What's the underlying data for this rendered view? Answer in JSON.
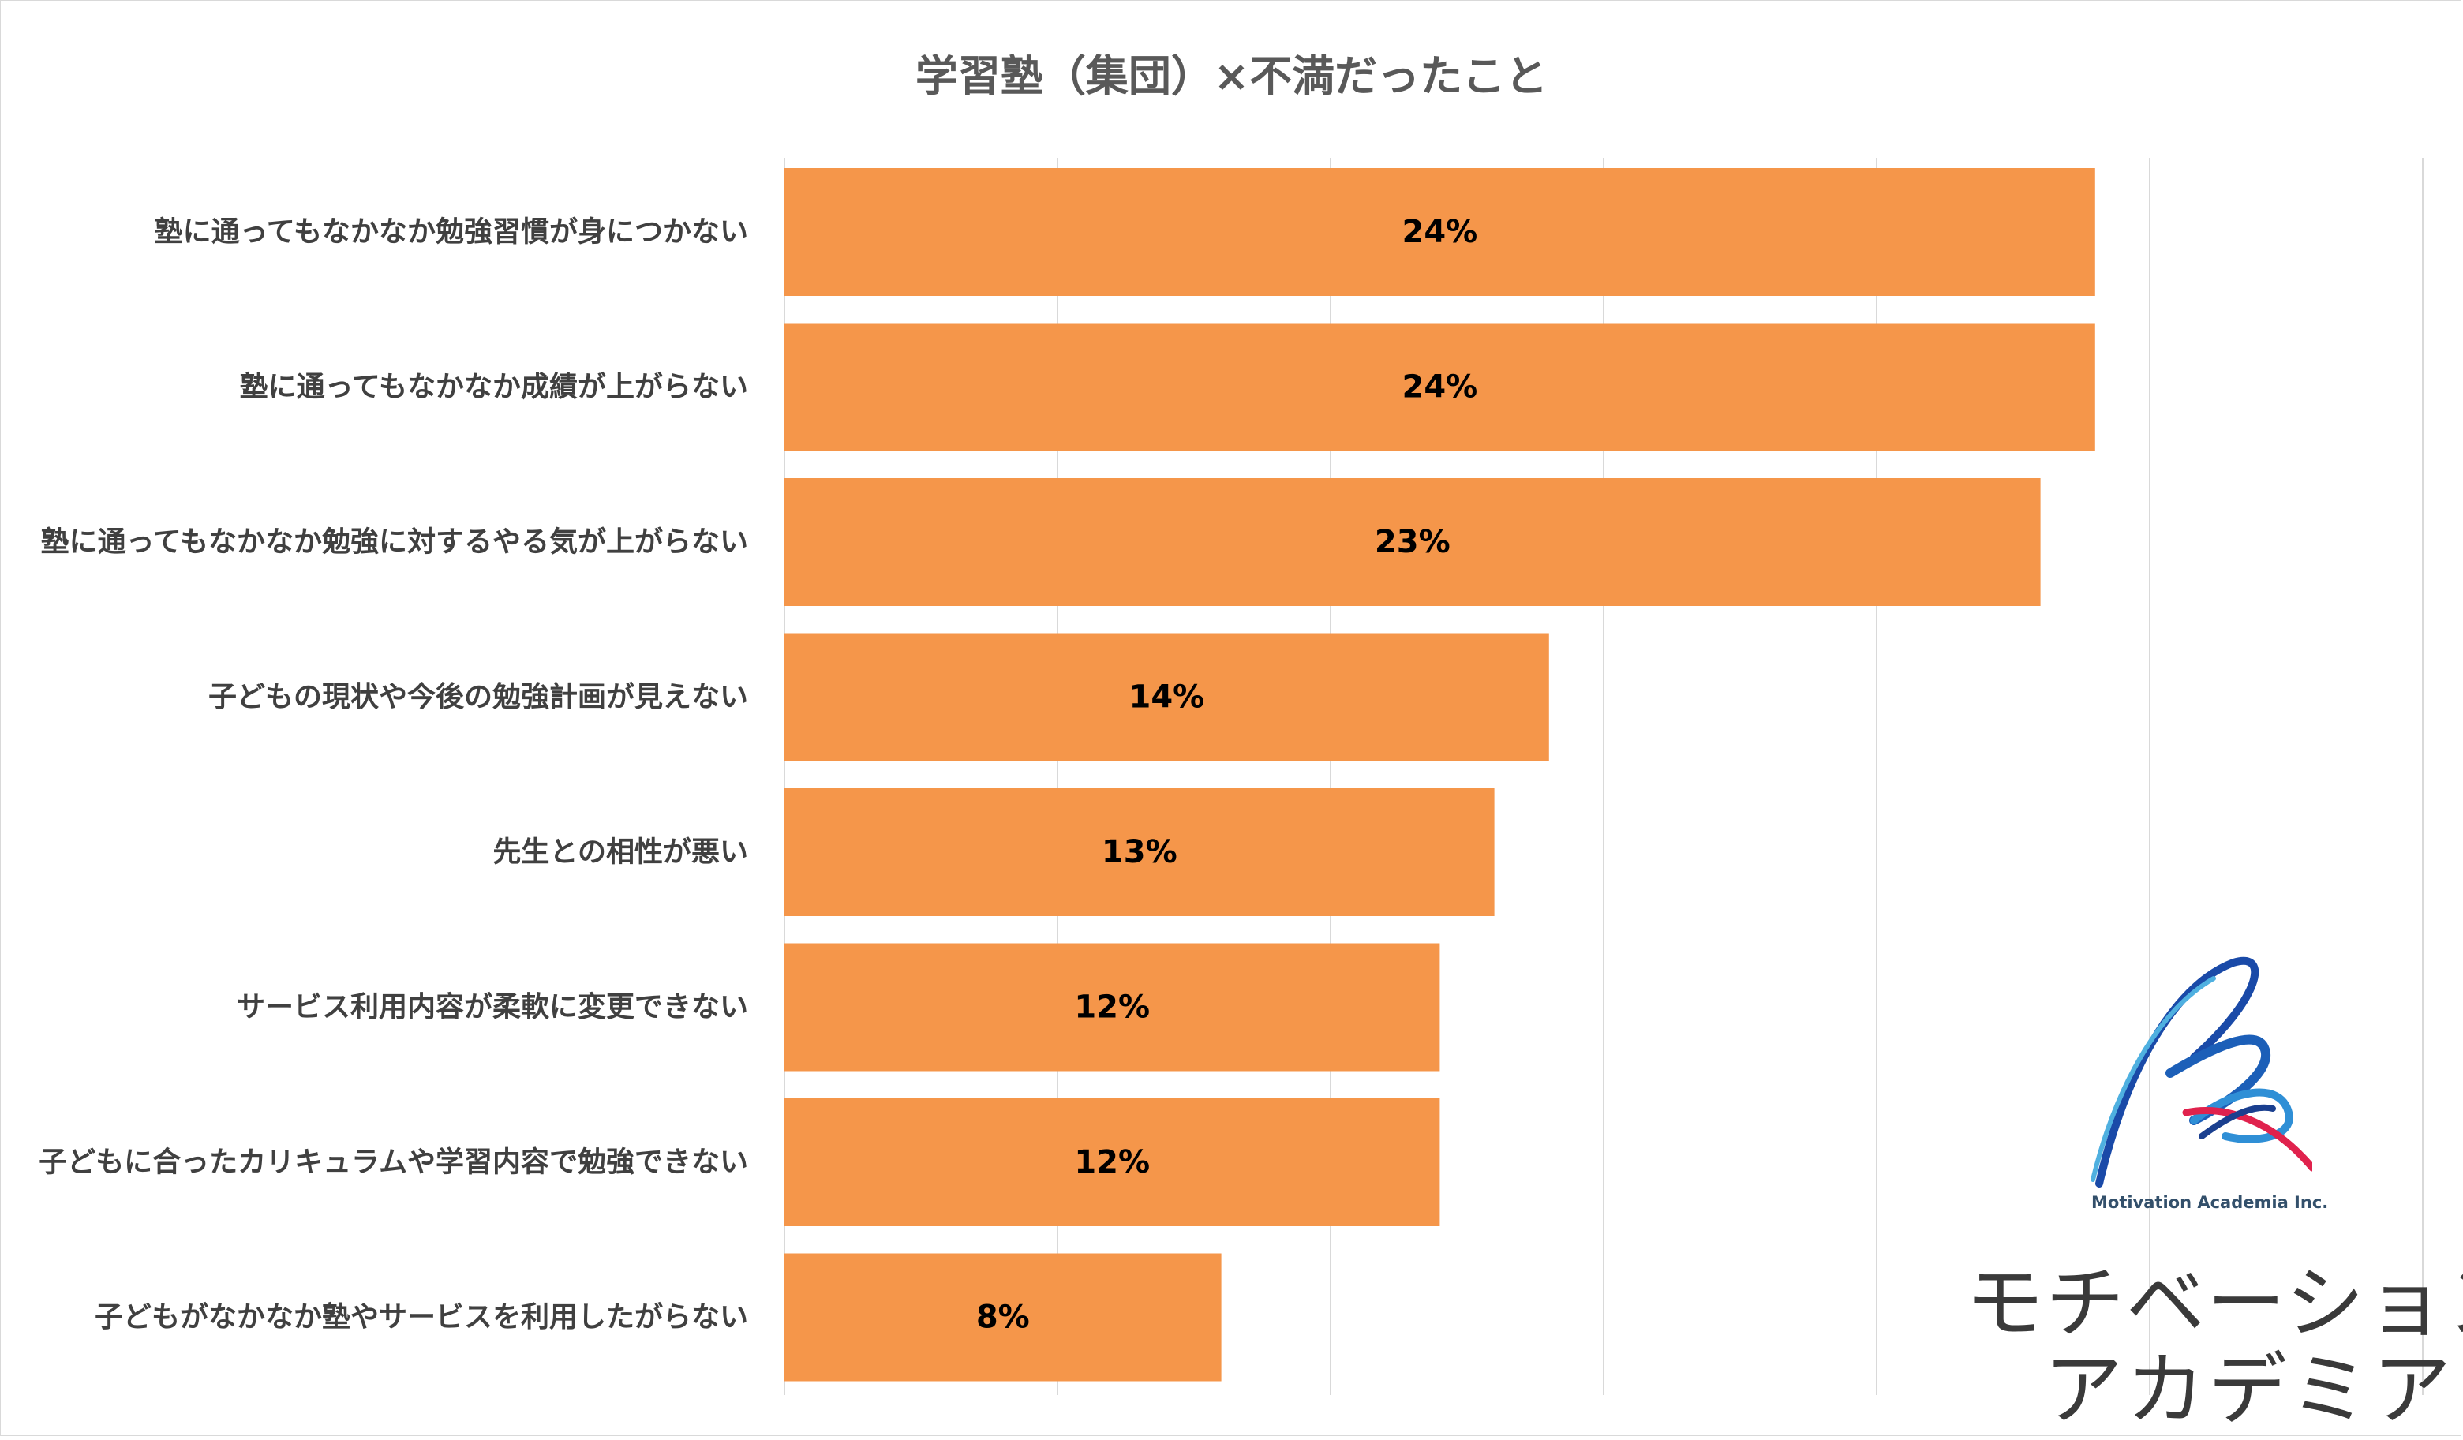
{
  "chart_data": {
    "type": "bar",
    "orientation": "horizontal",
    "title": "学習塾（集団）×不満だったこと",
    "categories": [
      "塾に通ってもなかなか勉強習慣が身につかない",
      "塾に通ってもなかなか成績が上がらない",
      "塾に通ってもなかなか勉強に対するやる気が上がらない",
      "子どもの現状や今後の勉強計画が見えない",
      "先生との相性が悪い",
      "サービス利用内容が柔軟に変更できない",
      "子どもに合ったカリキュラムや学習内容で勉強できない",
      "子どもがなかなか塾やサービスを利用したがらない"
    ],
    "values": [
      24,
      24,
      23,
      14,
      13,
      12,
      12,
      8
    ],
    "data_labels": [
      "24%",
      "24%",
      "23%",
      "14%",
      "13%",
      "12%",
      "12%",
      "8%"
    ],
    "unit": "%",
    "xlim": [
      0,
      30
    ],
    "gridline_step": 5,
    "grid": true,
    "legend": "none",
    "colors": {
      "bar": "#f5964a",
      "grid": "#d9d9d9"
    }
  },
  "logo": {
    "company_en": "Motivation Academia Inc.",
    "name_line1": "モチベーション",
    "name_line2": "アカデミア"
  }
}
